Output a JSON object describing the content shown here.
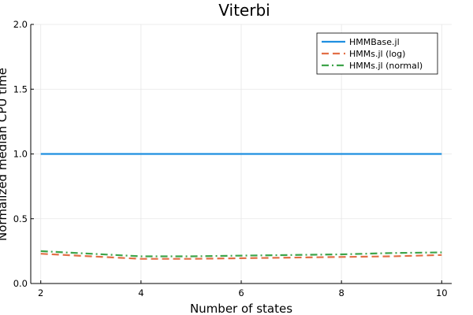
{
  "chart_data": {
    "type": "line",
    "title": "Viterbi",
    "xlabel": "Number of states",
    "ylabel": "Normalized median CPU time",
    "xlim": [
      1.8,
      10.2
    ],
    "ylim": [
      0,
      2
    ],
    "x_ticks": [
      2,
      4,
      6,
      8,
      10
    ],
    "y_ticks": [
      0.0,
      0.5,
      1.0,
      1.5,
      2.0
    ],
    "y_tick_labels": [
      "0.0",
      "0.5",
      "1.0",
      "1.5",
      "2.0"
    ],
    "grid": true,
    "legend_position": "top-right",
    "x": [
      2,
      3,
      4,
      5,
      6,
      7,
      8,
      9,
      10
    ],
    "series": [
      {
        "name": "HMMBase.jl",
        "color": "#1f8fe0",
        "style": "solid",
        "values": [
          1.0,
          1.0,
          1.0,
          1.0,
          1.0,
          1.0,
          1.0,
          1.0,
          1.0
        ]
      },
      {
        "name": "HMMs.jl (log)",
        "color": "#e26f46",
        "style": "dash",
        "values": [
          0.23,
          0.21,
          0.19,
          0.19,
          0.195,
          0.2,
          0.205,
          0.21,
          0.22
        ]
      },
      {
        "name": "HMMs.jl (normal)",
        "color": "#3ea44a",
        "style": "dashdot",
        "values": [
          0.25,
          0.23,
          0.21,
          0.21,
          0.215,
          0.22,
          0.225,
          0.235,
          0.24
        ]
      }
    ]
  }
}
